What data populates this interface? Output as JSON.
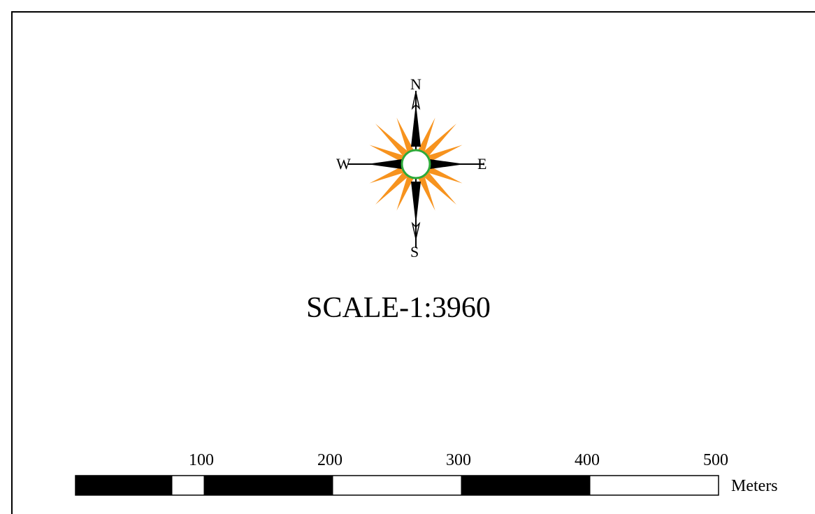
{
  "compass": {
    "north_label": "N",
    "south_label": "S",
    "east_label": "E",
    "west_label": "W",
    "colors": {
      "ray": "#f7931e",
      "cardinal": "#000000",
      "ring": "#2eaa3a",
      "center": "#ffffff"
    }
  },
  "scale_text": "SCALE-1:3960",
  "scalebar": {
    "tick_labels": [
      "100",
      "200",
      "300",
      "400",
      "500"
    ],
    "unit": "Meters",
    "max_value": 500,
    "segments": [
      {
        "from": 0,
        "to": 75,
        "fill": "black"
      },
      {
        "from": 75,
        "to": 100,
        "fill": "white"
      },
      {
        "from": 100,
        "to": 200,
        "fill": "black"
      },
      {
        "from": 200,
        "to": 300,
        "fill": "white"
      },
      {
        "from": 300,
        "to": 400,
        "fill": "black"
      },
      {
        "from": 400,
        "to": 500,
        "fill": "white"
      }
    ]
  }
}
